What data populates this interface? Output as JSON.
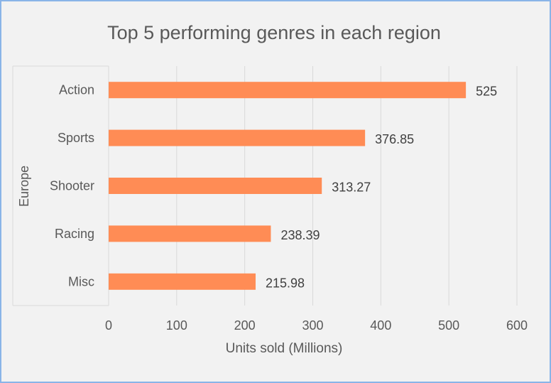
{
  "chart_data": {
    "type": "bar",
    "orientation": "horizontal",
    "title": "Top 5 performing genres in each region",
    "xlabel": "Units sold (Millions)",
    "group_label": "Europe",
    "categories": [
      "Action",
      "Sports",
      "Shooter",
      "Racing",
      "Misc"
    ],
    "values": [
      525,
      376.85,
      313.27,
      238.39,
      215.98
    ],
    "value_labels": [
      "525",
      "376.85",
      "313.27",
      "238.39",
      "215.98"
    ],
    "xlim": [
      0,
      600
    ],
    "xticks": [
      "0",
      "100",
      "200",
      "300",
      "400",
      "500",
      "600"
    ],
    "grid": true,
    "bar_color": "#ff8c55",
    "grid_color": "#d9d9d9"
  }
}
